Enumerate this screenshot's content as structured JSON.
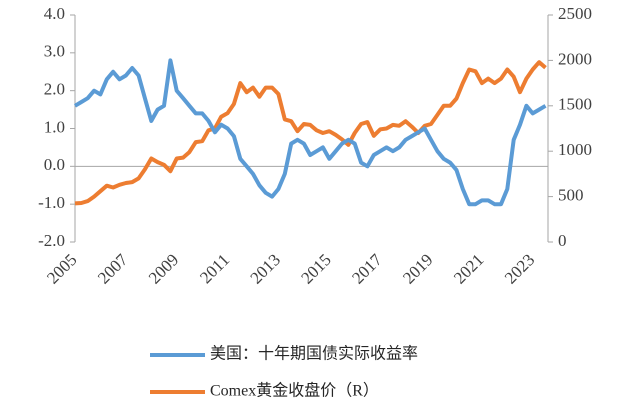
{
  "chart_data": {
    "type": "line",
    "x": [
      2005,
      2005.25,
      2005.5,
      2005.75,
      2006,
      2006.25,
      2006.5,
      2006.75,
      2007,
      2007.25,
      2007.5,
      2007.75,
      2008,
      2008.25,
      2008.5,
      2008.75,
      2009,
      2009.25,
      2009.5,
      2009.75,
      2010,
      2010.25,
      2010.5,
      2010.75,
      2011,
      2011.25,
      2011.5,
      2011.75,
      2012,
      2012.25,
      2012.5,
      2012.75,
      2013,
      2013.25,
      2013.5,
      2013.75,
      2014,
      2014.25,
      2014.5,
      2014.75,
      2015,
      2015.25,
      2015.5,
      2015.75,
      2016,
      2016.25,
      2016.5,
      2016.75,
      2017,
      2017.25,
      2017.5,
      2017.75,
      2018,
      2018.25,
      2018.5,
      2018.75,
      2019,
      2019.25,
      2019.5,
      2019.75,
      2020,
      2020.25,
      2020.5,
      2020.75,
      2021,
      2021.25,
      2021.5,
      2021.75,
      2022,
      2022.25,
      2022.5,
      2022.75,
      2023,
      2023.25,
      2023.5
    ],
    "series": [
      {
        "name": "美国：十年期国债实际收益率",
        "color": "#5b9bd5",
        "axis": "y",
        "values": [
          1.6,
          1.7,
          1.8,
          2.0,
          1.9,
          2.3,
          2.5,
          2.3,
          2.4,
          2.6,
          2.4,
          1.8,
          1.2,
          1.5,
          1.6,
          2.8,
          2.0,
          1.8,
          1.6,
          1.4,
          1.4,
          1.2,
          0.9,
          1.1,
          1.0,
          0.8,
          0.2,
          0.0,
          -0.2,
          -0.5,
          -0.7,
          -0.8,
          -0.6,
          -0.2,
          0.6,
          0.7,
          0.6,
          0.3,
          0.4,
          0.5,
          0.2,
          0.4,
          0.6,
          0.7,
          0.6,
          0.1,
          0.0,
          0.3,
          0.4,
          0.5,
          0.4,
          0.5,
          0.7,
          0.8,
          0.9,
          1.0,
          0.7,
          0.4,
          0.2,
          0.1,
          -0.1,
          -0.6,
          -1.0,
          -1.0,
          -0.9,
          -0.9,
          -1.0,
          -1.0,
          -0.6,
          0.7,
          1.1,
          1.6,
          1.4,
          1.5,
          1.6
        ]
      },
      {
        "name": "Comex黄金收盘价（R）",
        "color": "#ed7d31",
        "axis": "y2",
        "values": [
          425,
          430,
          450,
          500,
          560,
          620,
          600,
          630,
          650,
          660,
          700,
          800,
          920,
          880,
          850,
          780,
          920,
          930,
          990,
          1100,
          1110,
          1230,
          1250,
          1380,
          1420,
          1520,
          1750,
          1650,
          1700,
          1600,
          1700,
          1700,
          1630,
          1350,
          1330,
          1220,
          1300,
          1290,
          1230,
          1200,
          1220,
          1180,
          1130,
          1070,
          1200,
          1300,
          1320,
          1170,
          1240,
          1250,
          1290,
          1280,
          1330,
          1270,
          1200,
          1280,
          1300,
          1400,
          1500,
          1500,
          1580,
          1750,
          1900,
          1880,
          1750,
          1800,
          1750,
          1800,
          1900,
          1820,
          1650,
          1800,
          1900,
          1980,
          1920
        ]
      }
    ],
    "xlim": [
      2005,
      2023.6
    ],
    "xticks": [
      2005,
      2007,
      2009,
      2011,
      2013,
      2015,
      2017,
      2019,
      2021,
      2023
    ],
    "ylim": [
      -2,
      4
    ],
    "yticks": [
      {
        "value": -2,
        "label": "-2.0"
      },
      {
        "value": -1,
        "label": "-1.0"
      },
      {
        "value": 0,
        "label": "0.0"
      },
      {
        "value": 1,
        "label": "1.0"
      },
      {
        "value": 2,
        "label": "2.0"
      },
      {
        "value": 3,
        "label": "3.0"
      },
      {
        "value": 4,
        "label": "4.0"
      }
    ],
    "y2lim": [
      0,
      2500
    ],
    "y2ticks": [
      0,
      500,
      1000,
      1500,
      2000,
      2500
    ]
  }
}
